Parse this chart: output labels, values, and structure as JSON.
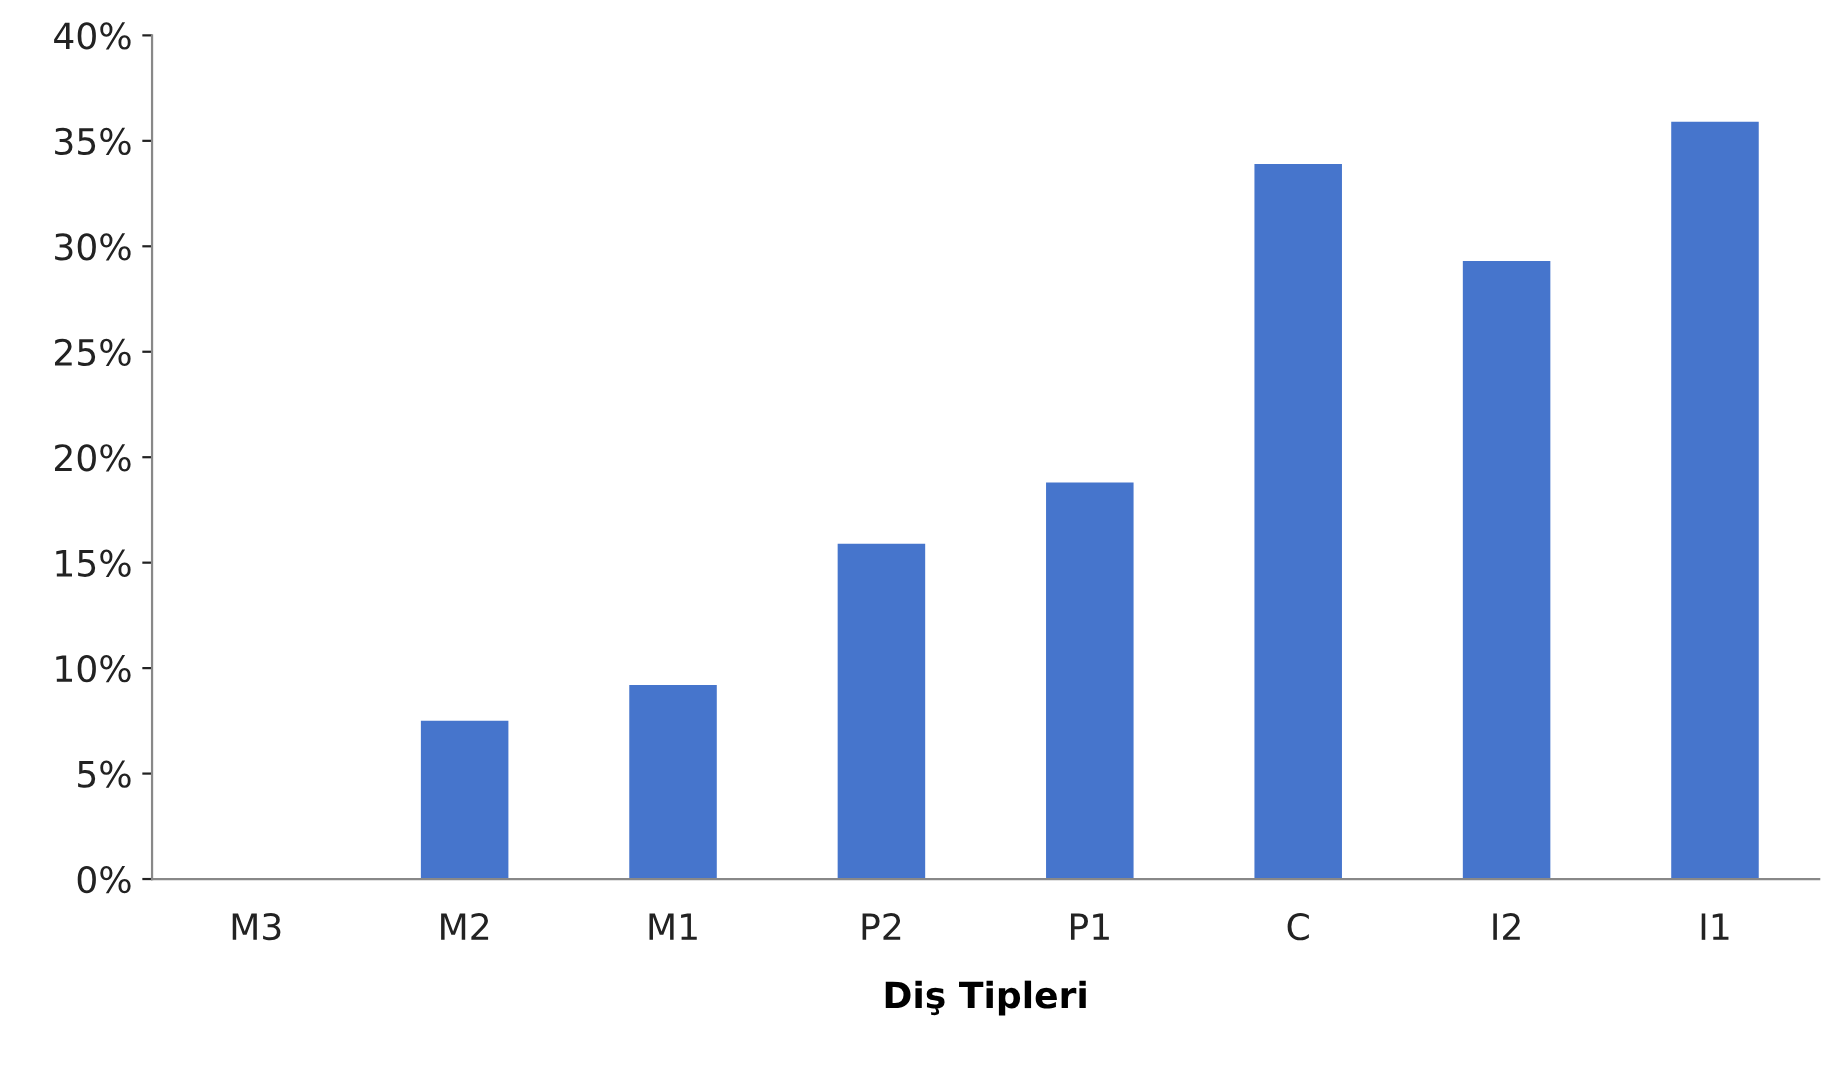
{
  "chart_data": {
    "type": "bar",
    "xlabel": "Diş Tipleri",
    "categories": [
      "M3",
      "M2",
      "M1",
      "P2",
      "P1",
      "C",
      "I2",
      "I1"
    ],
    "values": [
      0,
      7.5,
      9.2,
      15.9,
      18.8,
      33.9,
      29.3,
      35.9
    ],
    "color": "#4675cc",
    "ylim": [
      0,
      40
    ],
    "yticks": [
      {
        "value": 0,
        "label": "0%"
      },
      {
        "value": 5,
        "label": "5%"
      },
      {
        "value": 10,
        "label": "10%"
      },
      {
        "value": 15,
        "label": "15%"
      },
      {
        "value": 20,
        "label": "20%"
      },
      {
        "value": 25,
        "label": "25%"
      },
      {
        "value": 30,
        "label": "30%"
      },
      {
        "value": 35,
        "label": "35%"
      },
      {
        "value": 40,
        "label": "40%"
      }
    ],
    "grid": false,
    "legend": false
  }
}
